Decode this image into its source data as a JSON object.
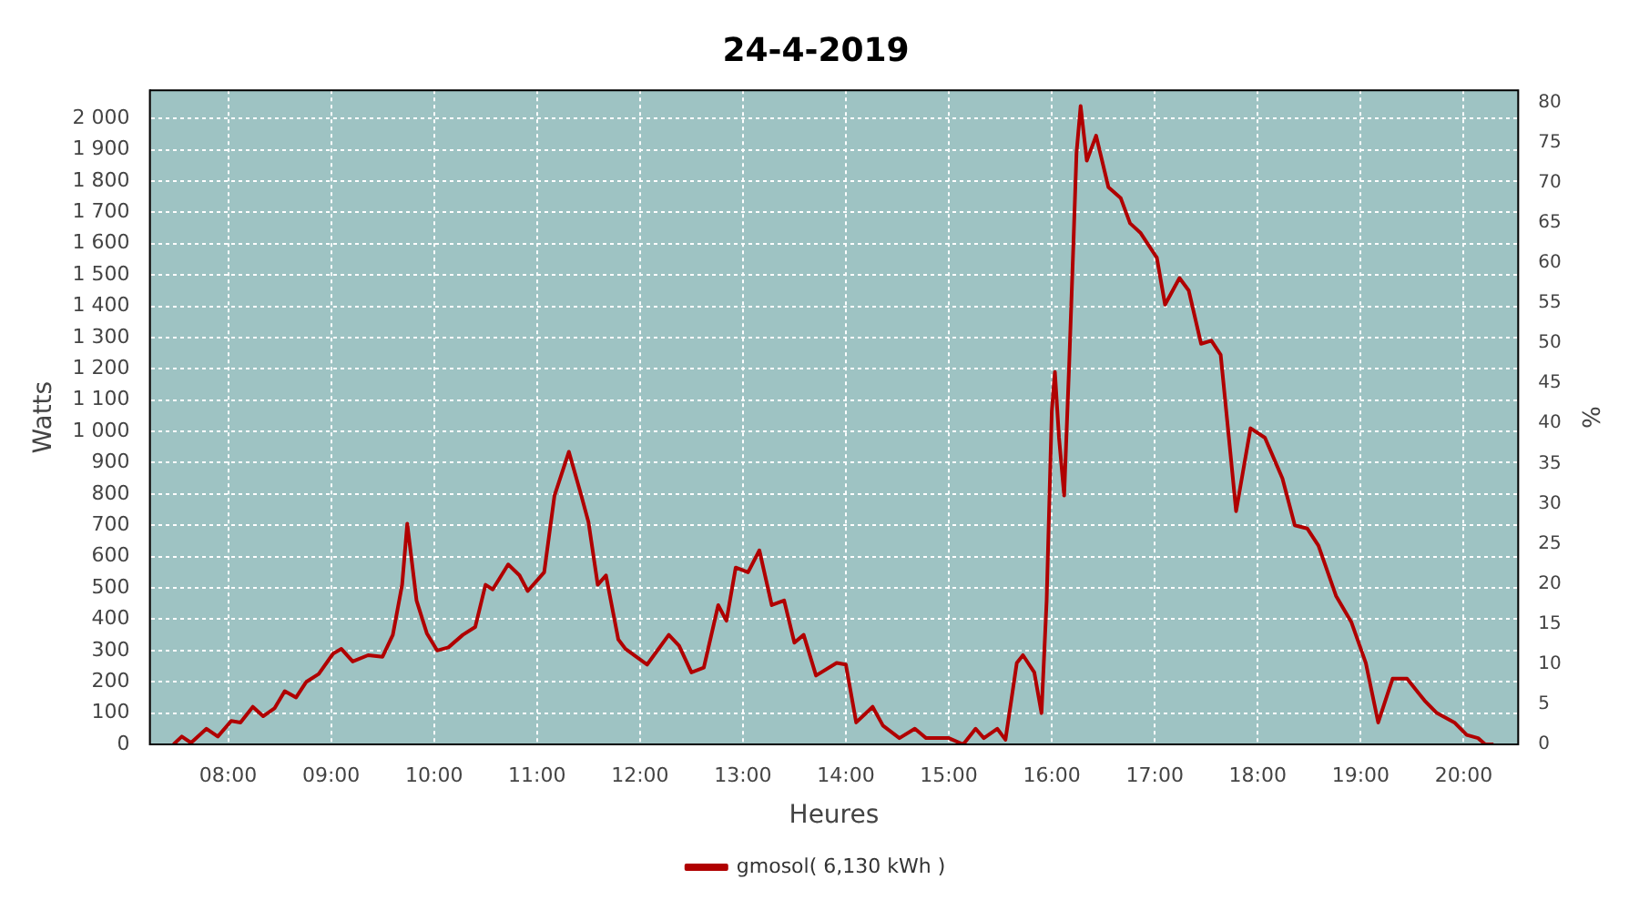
{
  "chart_data": {
    "type": "line",
    "title": "24-4-2019",
    "xlabel": "Heures",
    "ylabel": "Watts",
    "y2label": "%",
    "xlim": [
      7.24,
      20.53
    ],
    "xticks": [
      {
        "value": 8,
        "label": "08:00"
      },
      {
        "value": 9,
        "label": "09:00"
      },
      {
        "value": 10,
        "label": "10:00"
      },
      {
        "value": 11,
        "label": "11:00"
      },
      {
        "value": 12,
        "label": "12:00"
      },
      {
        "value": 13,
        "label": "13:00"
      },
      {
        "value": 14,
        "label": "14:00"
      },
      {
        "value": 15,
        "label": "15:00"
      },
      {
        "value": 16,
        "label": "16:00"
      },
      {
        "value": 17,
        "label": "17:00"
      },
      {
        "value": 18,
        "label": "18:00"
      },
      {
        "value": 19,
        "label": "19:00"
      },
      {
        "value": 20,
        "label": "20:00"
      }
    ],
    "ylim": [
      0,
      2090
    ],
    "yticks": [
      0,
      100,
      200,
      300,
      400,
      500,
      600,
      700,
      800,
      900,
      {
        "value": 1000,
        "label": "1 000"
      },
      {
        "value": 1100,
        "label": "1 100"
      },
      {
        "value": 1200,
        "label": "1 200"
      },
      {
        "value": 1300,
        "label": "1 300"
      },
      {
        "value": 1400,
        "label": "1 400"
      },
      {
        "value": 1500,
        "label": "1 500"
      },
      {
        "value": 1600,
        "label": "1 600"
      },
      {
        "value": 1700,
        "label": "1 700"
      },
      {
        "value": 1800,
        "label": "1 800"
      },
      {
        "value": 1900,
        "label": "1 900"
      },
      {
        "value": 2000,
        "label": "2 000"
      }
    ],
    "y2lim": [
      0,
      81.5
    ],
    "y2ticks": [
      0,
      5,
      10,
      15,
      20,
      25,
      30,
      35,
      40,
      45,
      50,
      55,
      60,
      65,
      70,
      75,
      80
    ],
    "grid": true,
    "legend": "bottom",
    "marker": "none",
    "line_style": "solid",
    "x": [
      7.47,
      7.55,
      7.64,
      7.79,
      7.9,
      8.03,
      8.12,
      8.24,
      8.34,
      8.45,
      8.55,
      8.66,
      8.76,
      8.88,
      9.02,
      9.1,
      9.21,
      9.36,
      9.5,
      9.6,
      9.69,
      9.74,
      9.83,
      9.93,
      10.03,
      10.14,
      10.28,
      10.4,
      10.5,
      10.57,
      10.72,
      10.83,
      10.91,
      11.07,
      11.17,
      11.31,
      11.43,
      11.5,
      11.59,
      11.67,
      11.79,
      11.86,
      12.07,
      12.28,
      12.38,
      12.5,
      12.62,
      12.76,
      12.84,
      12.93,
      13.05,
      13.16,
      13.28,
      13.4,
      13.5,
      13.59,
      13.71,
      13.91,
      14.0,
      14.1,
      14.26,
      14.36,
      14.52,
      14.67,
      14.78,
      15.0,
      15.14,
      15.26,
      15.34,
      15.47,
      15.55,
      15.66,
      15.72,
      15.83,
      15.9,
      15.95,
      16.0,
      16.03,
      16.07,
      16.12,
      16.17,
      16.21,
      16.24,
      16.28,
      16.34,
      16.43,
      16.55,
      16.67,
      16.76,
      16.86,
      17.02,
      17.1,
      17.24,
      17.33,
      17.45,
      17.55,
      17.64,
      17.72,
      17.79,
      17.93,
      18.07,
      18.24,
      18.36,
      18.48,
      18.59,
      18.76,
      18.91,
      19.05,
      19.17,
      19.31,
      19.45,
      19.62,
      19.74,
      19.91,
      20.03,
      20.14,
      20.21,
      20.29
    ],
    "series": [
      {
        "name": "gmosol( 6,130 kWh )",
        "color": "#b00000",
        "values": [
          0,
          25,
          5,
          50,
          25,
          75,
          70,
          120,
          90,
          115,
          170,
          150,
          200,
          225,
          290,
          305,
          265,
          285,
          280,
          350,
          510,
          705,
          460,
          355,
          300,
          310,
          350,
          375,
          510,
          495,
          575,
          540,
          490,
          550,
          795,
          935,
          795,
          710,
          510,
          540,
          335,
          305,
          255,
          350,
          315,
          230,
          245,
          445,
          395,
          565,
          550,
          620,
          445,
          460,
          325,
          350,
          220,
          260,
          255,
          70,
          120,
          60,
          20,
          50,
          20,
          20,
          0,
          50,
          20,
          50,
          15,
          260,
          285,
          230,
          100,
          460,
          1065,
          1190,
          980,
          795,
          1225,
          1600,
          1890,
          2040,
          1865,
          1945,
          1780,
          1745,
          1665,
          1635,
          1555,
          1405,
          1490,
          1450,
          1280,
          1290,
          1245,
          980,
          745,
          1010,
          980,
          850,
          700,
          690,
          635,
          475,
          390,
          260,
          70,
          210,
          210,
          140,
          100,
          70,
          30,
          20,
          0,
          0
        ]
      }
    ]
  }
}
